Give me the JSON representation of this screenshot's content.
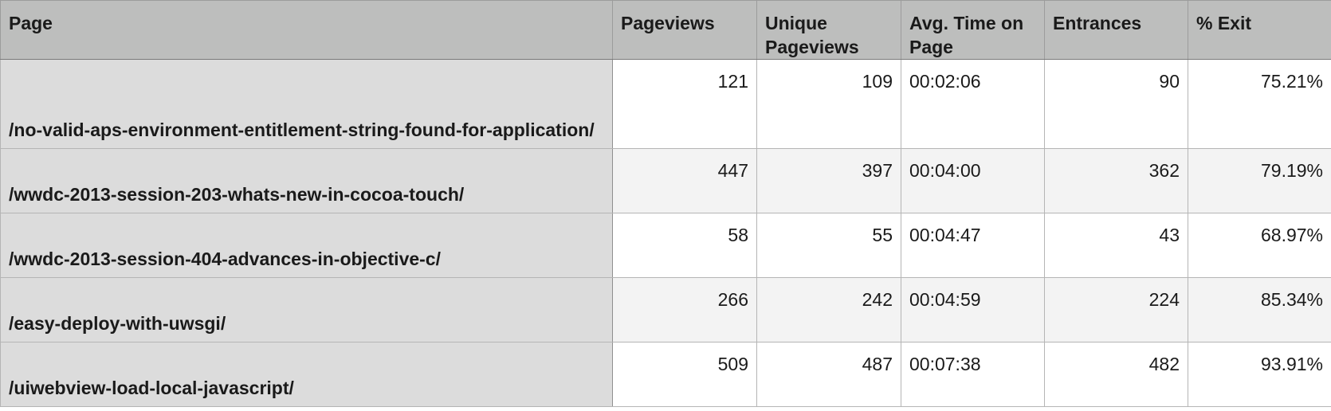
{
  "table": {
    "headers": {
      "page": "Page",
      "pageviews": "Pageviews",
      "unique_pageviews": "Unique Pageviews",
      "avg_time": "Avg. Time on Page",
      "entrances": "Entrances",
      "exit": "% Exit"
    },
    "rows": [
      {
        "page": "/no-valid-aps-environment-entitlement-string-found-for-application/",
        "pageviews": "121",
        "unique_pageviews": "109",
        "avg_time": "00:02:06",
        "entrances": "90",
        "exit": "75.21%"
      },
      {
        "page": "/wwdc-2013-session-203-whats-new-in-cocoa-touch/",
        "pageviews": "447",
        "unique_pageviews": "397",
        "avg_time": "00:04:00",
        "entrances": "362",
        "exit": "79.19%"
      },
      {
        "page": "/wwdc-2013-session-404-advances-in-objective-c/",
        "pageviews": "58",
        "unique_pageviews": "55",
        "avg_time": "00:04:47",
        "entrances": "43",
        "exit": "68.97%"
      },
      {
        "page": "/easy-deploy-with-uwsgi/",
        "pageviews": "266",
        "unique_pageviews": "242",
        "avg_time": "00:04:59",
        "entrances": "224",
        "exit": "85.34%"
      },
      {
        "page": "/uiwebview-load-local-javascript/",
        "pageviews": "509",
        "unique_pageviews": "487",
        "avg_time": "00:07:38",
        "entrances": "482",
        "exit": "93.91%"
      }
    ]
  }
}
